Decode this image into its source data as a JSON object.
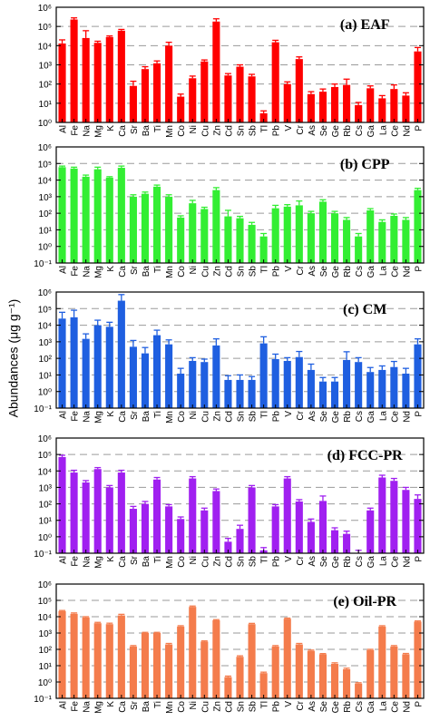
{
  "y_axis_label": "Abundances (μg g⁻¹)",
  "chart_data": [
    {
      "type": "bar",
      "title": "(a) EAF",
      "color": "#ff0000",
      "y_scale": "log",
      "ylim": [
        1,
        1000000
      ],
      "y_ticks": [
        "10⁰",
        "10¹",
        "10²",
        "10³",
        "10⁴",
        "10⁵",
        "10⁶"
      ],
      "grid": "horizontal dashed at decades",
      "categories": [
        "Al",
        "Fe",
        "Na",
        "Mg",
        "K",
        "Ca",
        "Sr",
        "Ba",
        "Ti",
        "Mn",
        "Co",
        "Ni",
        "Cu",
        "Zn",
        "Cd",
        "Sn",
        "Sb",
        "Tl",
        "Pb",
        "V",
        "Cr",
        "As",
        "Se",
        "Ge",
        "Rb",
        "Cs",
        "Ga",
        "La",
        "Ce",
        "Nd",
        "P"
      ],
      "values": [
        13000,
        230000,
        25000,
        14000,
        28000,
        60000,
        80,
        600,
        1200,
        10000,
        22,
        200,
        1500,
        180000,
        280,
        800,
        250,
        3,
        15000,
        100,
        2000,
        30,
        40,
        70,
        90,
        8,
        60,
        18,
        55,
        25,
        5000
      ],
      "errors_upper": [
        20000,
        280000,
        60000,
        17000,
        32000,
        70000,
        140,
        800,
        1600,
        15000,
        30,
        260,
        1800,
        250000,
        350,
        1000,
        320,
        4,
        19000,
        130,
        2600,
        40,
        55,
        100,
        180,
        11,
        80,
        25,
        90,
        35,
        8000
      ]
    },
    {
      "type": "bar",
      "title": "(b) CPP",
      "color": "#33ee33",
      "y_scale": "log",
      "ylim": [
        0.1,
        1000000
      ],
      "y_ticks": [
        "10⁻¹",
        "10⁰",
        "10¹",
        "10²",
        "10³",
        "10⁴",
        "10⁵",
        "10⁶"
      ],
      "grid": "horizontal dashed at decades",
      "categories": [
        "Al",
        "Fe",
        "Na",
        "Mg",
        "K",
        "Ca",
        "Sr",
        "Ba",
        "Ti",
        "Mn",
        "Co",
        "Ni",
        "Cu",
        "Zn",
        "Cd",
        "Sn",
        "Sb",
        "Tl",
        "Pb",
        "V",
        "Cr",
        "As",
        "Se",
        "Ge",
        "Rb",
        "Cs",
        "Ga",
        "La",
        "Ce",
        "Nd",
        "P"
      ],
      "values": [
        60000,
        50000,
        16000,
        45000,
        14000,
        55000,
        1000,
        1500,
        4000,
        1000,
        55,
        400,
        180,
        2500,
        65,
        50,
        20,
        4,
        200,
        250,
        300,
        100,
        500,
        100,
        40,
        4,
        150,
        30,
        70,
        40,
        2500
      ],
      "errors_upper": [
        70000,
        60000,
        20000,
        60000,
        16000,
        70000,
        1300,
        1900,
        5000,
        1300,
        70,
        600,
        230,
        3500,
        150,
        65,
        28,
        6,
        300,
        330,
        550,
        130,
        650,
        130,
        55,
        6,
        190,
        40,
        90,
        55,
        3200
      ]
    },
    {
      "type": "bar",
      "title": "(c) CM",
      "color": "#1f5fe0",
      "y_scale": "log",
      "ylim": [
        0.1,
        1000000
      ],
      "y_ticks": [
        "10⁻¹",
        "10⁰",
        "10¹",
        "10²",
        "10³",
        "10⁴",
        "10⁵",
        "10⁶"
      ],
      "grid": "horizontal dashed at decades",
      "categories": [
        "Al",
        "Fe",
        "Na",
        "Mg",
        "K",
        "Ca",
        "Sr",
        "Ba",
        "Ti",
        "Mn",
        "Co",
        "Ni",
        "Cu",
        "Zn",
        "Cd",
        "Sn",
        "Sb",
        "Tl",
        "Pb",
        "V",
        "Cr",
        "As",
        "Se",
        "Ge",
        "Rb",
        "Cs",
        "Ga",
        "La",
        "Ce",
        "Nd",
        "P"
      ],
      "values": [
        25000,
        30000,
        1500,
        10000,
        8000,
        300000,
        500,
        200,
        2500,
        700,
        12,
        70,
        60,
        600,
        5,
        5,
        5,
        800,
        90,
        70,
        120,
        20,
        4,
        4,
        80,
        60,
        15,
        20,
        30,
        12,
        700
      ],
      "errors_upper": [
        60000,
        80000,
        3000,
        20000,
        15000,
        700000,
        1200,
        450,
        5000,
        1300,
        25,
        110,
        90,
        1500,
        9,
        10,
        8,
        2000,
        180,
        110,
        260,
        45,
        7,
        7,
        250,
        110,
        28,
        35,
        65,
        25,
        1500
      ]
    },
    {
      "type": "bar",
      "title": "(d) FCC-PR",
      "color": "#a020f0",
      "y_scale": "log",
      "ylim": [
        0.1,
        1000000
      ],
      "y_ticks": [
        "10⁻¹",
        "10⁰",
        "10¹",
        "10²",
        "10³",
        "10⁴",
        "10⁵",
        "10⁶"
      ],
      "grid": "horizontal dashed at decades",
      "categories": [
        "Al",
        "Fe",
        "Na",
        "Mg",
        "K",
        "Ca",
        "Sr",
        "Ba",
        "Ti",
        "Mn",
        "Co",
        "Ni",
        "Cu",
        "Zn",
        "Cd",
        "Sn",
        "Sb",
        "Tl",
        "Pb",
        "V",
        "Cr",
        "As",
        "Se",
        "Ge",
        "Rb",
        "Cs",
        "Ga",
        "La",
        "Ce",
        "Nd",
        "P"
      ],
      "values": [
        70000,
        8000,
        2000,
        13000,
        1000,
        8000,
        50,
        100,
        3000,
        70,
        12,
        3500,
        40,
        600,
        0.5,
        3,
        1000,
        0.15,
        70,
        3500,
        140,
        8,
        150,
        2.5,
        1.5,
        0.1,
        40,
        4000,
        2500,
        700,
        200
      ],
      "errors_upper": [
        90000,
        11000,
        2600,
        16000,
        1300,
        11000,
        70,
        140,
        4000,
        90,
        16,
        4500,
        55,
        800,
        0.8,
        5,
        1300,
        0.22,
        90,
        4500,
        180,
        12,
        300,
        3.5,
        2.2,
        0.15,
        55,
        5500,
        3500,
        1000,
        350
      ]
    },
    {
      "type": "bar",
      "title": "(e) Oil-PR",
      "color": "#f47c4c",
      "y_scale": "log",
      "ylim": [
        0.1,
        1000000
      ],
      "y_ticks": [
        "10⁻¹",
        "10⁰",
        "10¹",
        "10²",
        "10³",
        "10⁴",
        "10⁵",
        "10⁶"
      ],
      "grid": "horizontal dashed at decades",
      "categories": [
        "Al",
        "Fe",
        "Na",
        "Mg",
        "K",
        "Ca",
        "Sr",
        "Ba",
        "Ti",
        "Mn",
        "Co",
        "Ni",
        "Cu",
        "Zn",
        "Cd",
        "Sn",
        "Sb",
        "Tl",
        "Pb",
        "V",
        "Cr",
        "As",
        "Se",
        "Ge",
        "Rb",
        "Cs",
        "Ga",
        "La",
        "Ce",
        "Nd",
        "P"
      ],
      "values": [
        22000,
        15000,
        9000,
        4000,
        3500,
        12000,
        150,
        1000,
        1000,
        200,
        2500,
        40000,
        300,
        6000,
        2,
        35,
        3500,
        3.5,
        150,
        7500,
        200,
        80,
        50,
        13,
        6,
        0.8,
        90,
        2500,
        150,
        50,
        5000
      ],
      "errors_upper": [
        24000,
        17000,
        10000,
        4500,
        4000,
        14000,
        170,
        1100,
        1100,
        230,
        2800,
        45000,
        330,
        6600,
        2.3,
        40,
        3900,
        4,
        170,
        8200,
        230,
        90,
        55,
        15,
        7,
        0.9,
        100,
        2800,
        170,
        56,
        5500
      ]
    }
  ]
}
